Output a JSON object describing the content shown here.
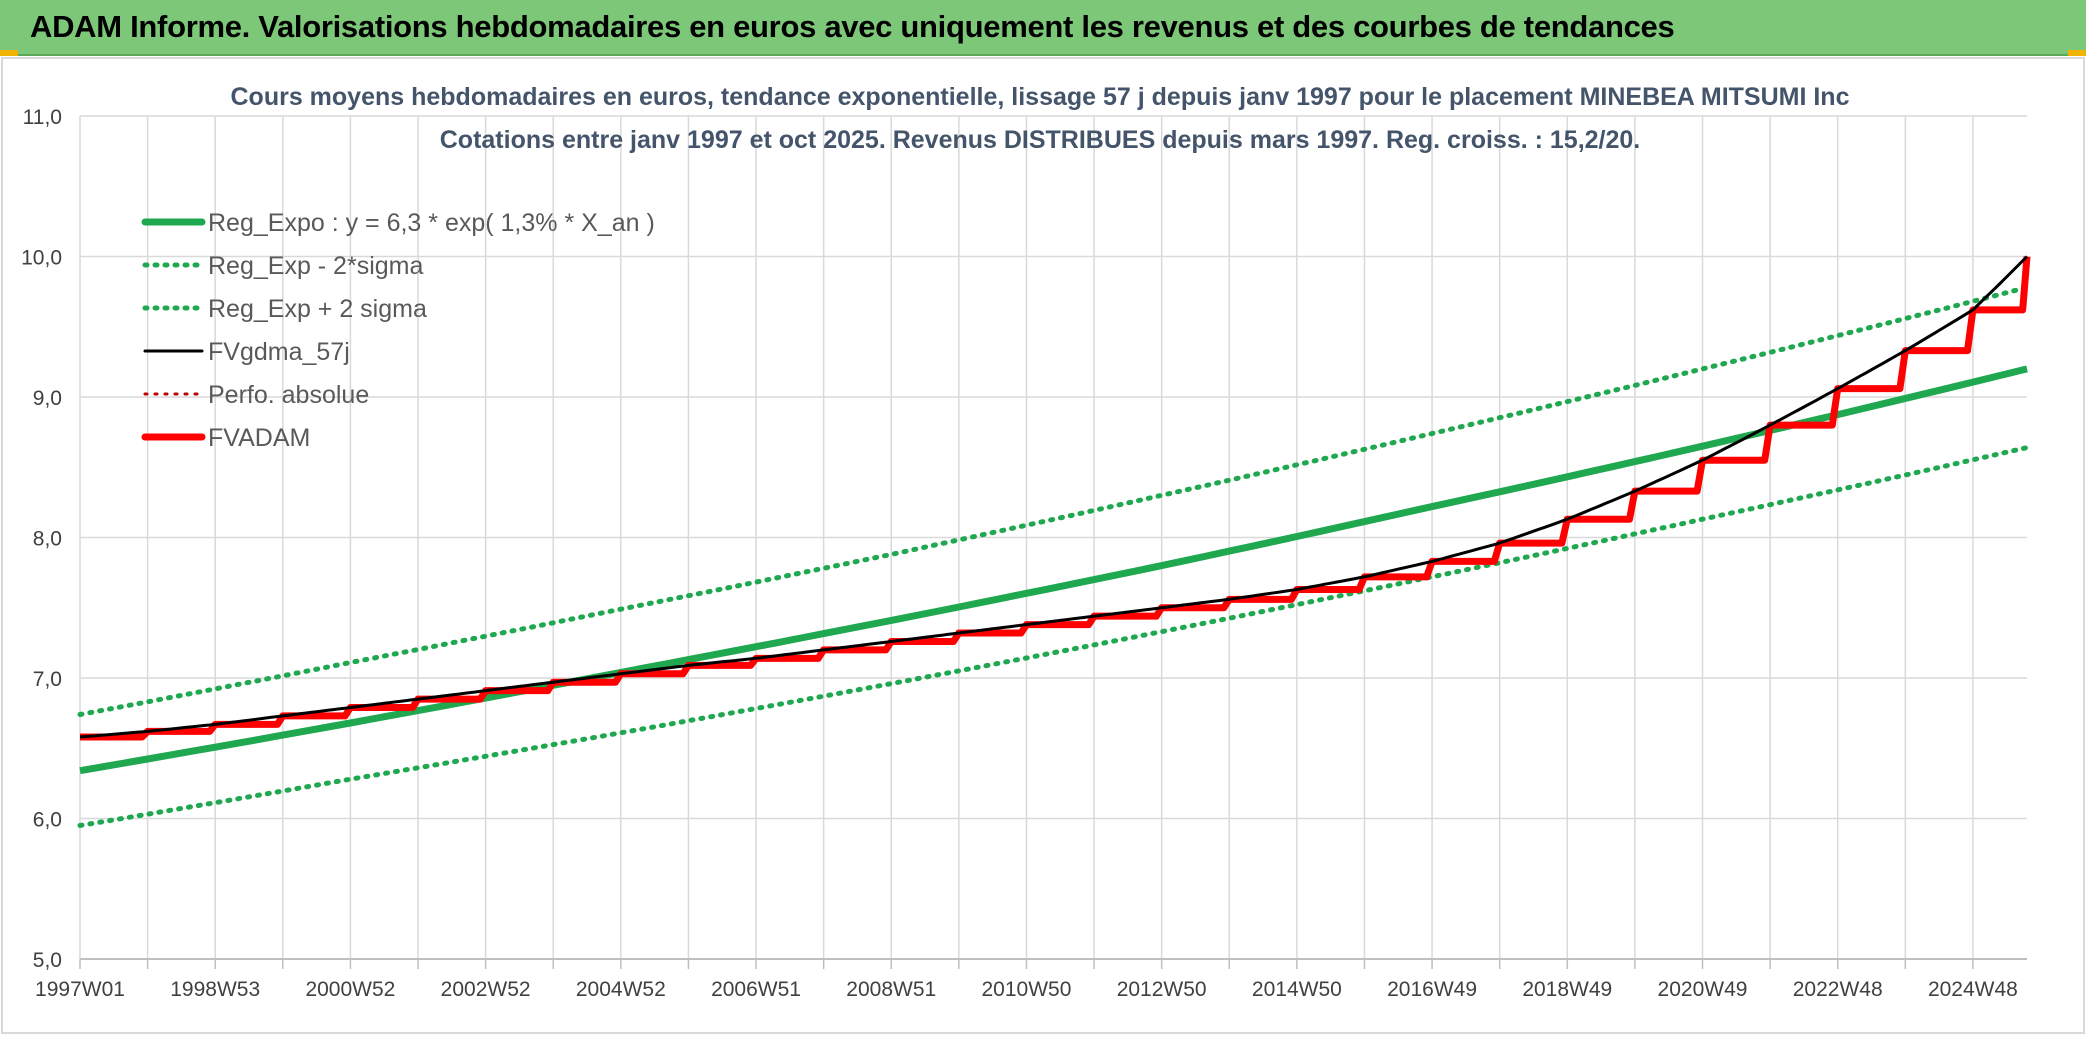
{
  "header": {
    "title": "ADAM Informe. Valorisations hebdomadaires en euros avec uniquement les revenus et des courbes de tendances"
  },
  "chart_data": {
    "type": "line",
    "title": "Cours moyens hebdomadaires en euros, tendance exponentielle, lissage 57 j depuis janv 1997 pour le placement MINEBEA MITSUMI Inc",
    "subtitle": "Cotations entre janv 1997 et oct 2025. Revenus DISTRIBUES depuis mars 1997. Reg. croiss. : 15,2/20.",
    "xlabel": "",
    "ylabel": "",
    "ylim": [
      5.0,
      11.0
    ],
    "yticks": [
      "5,0",
      "6,0",
      "7,0",
      "8,0",
      "9,0",
      "10,0",
      "11,0"
    ],
    "xlim": [
      1997.0,
      2025.8
    ],
    "xticks": [
      {
        "label": "1997W01",
        "x": 1997.0
      },
      {
        "label": "1998W53",
        "x": 1999.0
      },
      {
        "label": "2000W52",
        "x": 2001.0
      },
      {
        "label": "2002W52",
        "x": 2003.0
      },
      {
        "label": "2004W52",
        "x": 2005.0
      },
      {
        "label": "2006W51",
        "x": 2007.0
      },
      {
        "label": "2008W51",
        "x": 2009.0
      },
      {
        "label": "2010W50",
        "x": 2011.0
      },
      {
        "label": "2012W50",
        "x": 2013.0
      },
      {
        "label": "2014W50",
        "x": 2015.0
      },
      {
        "label": "2016W49",
        "x": 2017.0
      },
      {
        "label": "2018W49",
        "x": 2019.0
      },
      {
        "label": "2020W49",
        "x": 2021.0
      },
      {
        "label": "2022W48",
        "x": 2023.0
      },
      {
        "label": "2024W48",
        "x": 2025.0
      }
    ],
    "grid": true,
    "legend_position": "top-left",
    "series": [
      {
        "name": "Reg_Expo : y = 6,3 * exp( 1,3% *  X_an )",
        "color": "#1fa84f",
        "style": "solid",
        "width": 7,
        "x": [
          1997.0,
          2001.0,
          2005.0,
          2009.0,
          2013.0,
          2017.0,
          2021.0,
          2025.8
        ],
        "y": [
          6.34,
          6.68,
          7.04,
          7.41,
          7.8,
          8.22,
          8.65,
          9.2
        ]
      },
      {
        "name": "Reg_Exp - 2*sigma",
        "color": "#1fa84f",
        "style": "dotted",
        "width": 5,
        "x": [
          1997.0,
          2001.0,
          2005.0,
          2009.0,
          2013.0,
          2017.0,
          2021.0,
          2025.8
        ],
        "y": [
          5.95,
          6.28,
          6.61,
          6.96,
          7.33,
          7.72,
          8.13,
          8.64
        ]
      },
      {
        "name": "Reg_Exp + 2 sigma",
        "color": "#1fa84f",
        "style": "dotted",
        "width": 5,
        "x": [
          1997.0,
          2001.0,
          2005.0,
          2009.0,
          2013.0,
          2017.0,
          2021.0,
          2025.8
        ],
        "y": [
          6.74,
          7.11,
          7.49,
          7.88,
          8.3,
          8.74,
          9.2,
          9.78
        ]
      },
      {
        "name": "FVgdma_57j",
        "color": "#000000",
        "style": "solid",
        "width": 3,
        "x": [
          1997.0,
          1998.0,
          1999.0,
          2000.0,
          2001.0,
          2002.0,
          2003.0,
          2004.0,
          2005.0,
          2006.0,
          2007.0,
          2008.0,
          2009.0,
          2010.0,
          2011.0,
          2012.0,
          2013.0,
          2014.0,
          2015.0,
          2016.0,
          2017.0,
          2018.0,
          2019.0,
          2020.0,
          2021.0,
          2022.0,
          2023.0,
          2024.0,
          2025.0,
          2025.8
        ],
        "y": [
          6.58,
          6.62,
          6.67,
          6.73,
          6.79,
          6.85,
          6.91,
          6.97,
          7.03,
          7.09,
          7.14,
          7.2,
          7.26,
          7.32,
          7.38,
          7.44,
          7.5,
          7.56,
          7.63,
          7.72,
          7.83,
          7.96,
          8.13,
          8.33,
          8.55,
          8.8,
          9.06,
          9.33,
          9.62,
          10.0
        ]
      },
      {
        "name": "Perfo. absolue",
        "color": "#c00000",
        "style": "dotted",
        "width": 3,
        "x": [],
        "y": []
      },
      {
        "name": "FVADAM",
        "color": "#ff0000",
        "style": "step",
        "width": 7,
        "x": [
          1997.0,
          1998.0,
          1999.0,
          2000.0,
          2001.0,
          2002.0,
          2003.0,
          2004.0,
          2005.0,
          2006.0,
          2007.0,
          2008.0,
          2009.0,
          2010.0,
          2011.0,
          2012.0,
          2013.0,
          2014.0,
          2015.0,
          2016.0,
          2017.0,
          2018.0,
          2019.0,
          2020.0,
          2021.0,
          2022.0,
          2023.0,
          2024.0,
          2025.0,
          2025.8
        ],
        "y": [
          6.58,
          6.62,
          6.67,
          6.73,
          6.79,
          6.85,
          6.91,
          6.97,
          7.03,
          7.09,
          7.14,
          7.2,
          7.26,
          7.32,
          7.38,
          7.44,
          7.5,
          7.56,
          7.63,
          7.72,
          7.83,
          7.96,
          8.13,
          8.33,
          8.55,
          8.8,
          9.06,
          9.33,
          9.62,
          10.0
        ]
      }
    ]
  }
}
